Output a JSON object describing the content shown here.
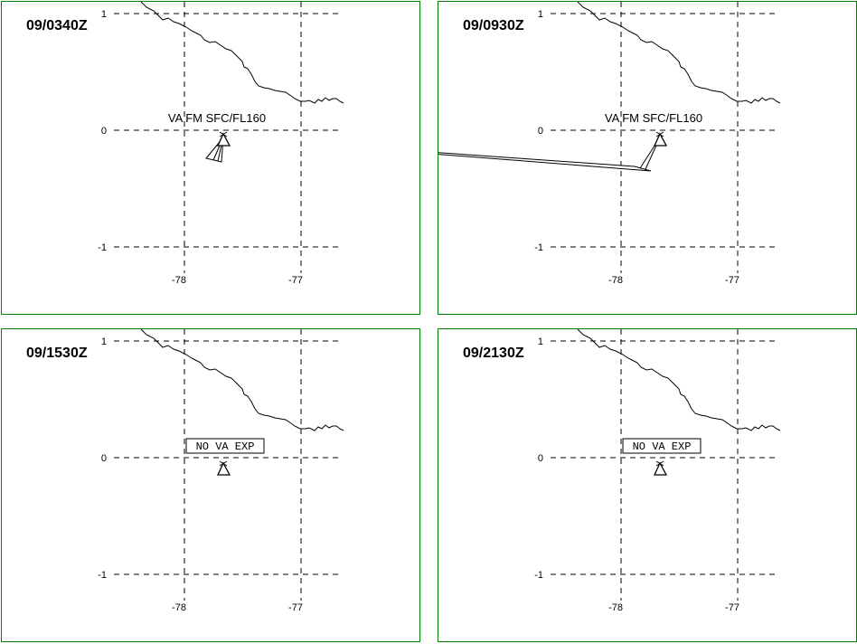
{
  "panels": [
    {
      "time": "09/0340Z",
      "label": "VA FM SFC/FL160",
      "boxed": false,
      "plume": "small"
    },
    {
      "time": "09/0930Z",
      "label": "VA FM SFC/FL160",
      "boxed": false,
      "plume": "large"
    },
    {
      "time": "09/1530Z",
      "label": "NO VA EXP",
      "boxed": true,
      "plume": "none"
    },
    {
      "time": "09/2130Z",
      "label": "NO VA EXP",
      "boxed": true,
      "plume": "none"
    }
  ],
  "grid": {
    "lat_labels": [
      "1",
      "0",
      "-1"
    ],
    "lon_labels": [
      "-78",
      "-77"
    ]
  },
  "colors": {
    "border": "#008000",
    "ink": "#000000",
    "background": "#ffffff"
  },
  "symbol": "volcano-triangle-icon"
}
